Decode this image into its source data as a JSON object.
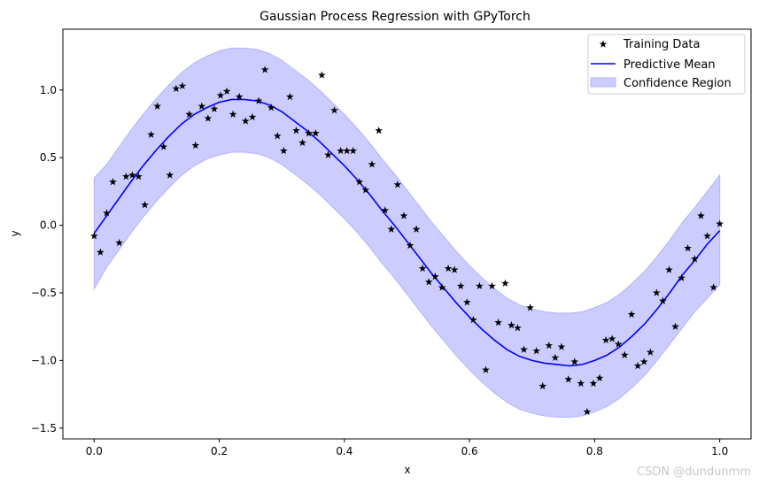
{
  "chart_data": {
    "type": "scatter",
    "title": "Gaussian Process Regression with GPyTorch",
    "xlabel": "x",
    "ylabel": "y",
    "xlim": [
      -0.05,
      1.05
    ],
    "ylim": [
      -1.58,
      1.45
    ],
    "xticks": [
      0.0,
      0.2,
      0.4,
      0.6,
      0.8,
      1.0
    ],
    "xtick_labels": [
      "0.0",
      "0.2",
      "0.4",
      "0.6",
      "0.8",
      "1.0"
    ],
    "yticks": [
      -1.5,
      -1.0,
      -0.5,
      0.0,
      0.5,
      1.0
    ],
    "ytick_labels": [
      "−1.5",
      "−1.0",
      "−0.5",
      "0.0",
      "0.5",
      "1.0"
    ],
    "grid": false,
    "legend_position": "top-right",
    "colors": {
      "training": "#000000",
      "mean": "#0000ff",
      "confidence_fill": "#ccccff",
      "confidence_edge": "#b3b3ff"
    },
    "series": [
      {
        "name": "Training Data",
        "kind": "scatter",
        "marker": "star",
        "x": [
          0.0,
          0.01,
          0.02,
          0.03,
          0.04,
          0.051,
          0.061,
          0.071,
          0.081,
          0.091,
          0.101,
          0.111,
          0.121,
          0.131,
          0.141,
          0.152,
          0.162,
          0.172,
          0.182,
          0.192,
          0.202,
          0.212,
          0.222,
          0.232,
          0.242,
          0.253,
          0.263,
          0.273,
          0.283,
          0.293,
          0.303,
          0.313,
          0.323,
          0.333,
          0.343,
          0.354,
          0.364,
          0.374,
          0.384,
          0.394,
          0.404,
          0.414,
          0.424,
          0.434,
          0.444,
          0.455,
          0.465,
          0.475,
          0.485,
          0.495,
          0.505,
          0.515,
          0.525,
          0.535,
          0.545,
          0.556,
          0.566,
          0.576,
          0.586,
          0.596,
          0.606,
          0.616,
          0.626,
          0.636,
          0.646,
          0.657,
          0.667,
          0.677,
          0.687,
          0.697,
          0.707,
          0.717,
          0.727,
          0.737,
          0.747,
          0.758,
          0.768,
          0.778,
          0.788,
          0.798,
          0.808,
          0.818,
          0.828,
          0.838,
          0.848,
          0.859,
          0.869,
          0.879,
          0.889,
          0.899,
          0.909,
          0.919,
          0.929,
          0.939,
          0.949,
          0.96,
          0.97,
          0.98,
          0.99,
          1.0
        ],
        "y": [
          -0.08,
          -0.2,
          0.09,
          0.32,
          -0.13,
          0.36,
          0.37,
          0.36,
          0.15,
          0.67,
          0.88,
          0.58,
          0.37,
          1.01,
          1.03,
          0.82,
          0.59,
          0.88,
          0.79,
          0.86,
          0.96,
          0.99,
          0.82,
          0.95,
          0.77,
          0.8,
          0.92,
          1.15,
          0.87,
          0.66,
          0.55,
          0.95,
          0.7,
          0.61,
          0.68,
          0.68,
          1.11,
          0.52,
          0.85,
          0.55,
          0.55,
          0.55,
          0.32,
          0.26,
          0.45,
          0.7,
          0.11,
          -0.03,
          0.3,
          0.07,
          -0.15,
          -0.03,
          -0.32,
          -0.42,
          -0.38,
          -0.46,
          -0.32,
          -0.33,
          -0.45,
          -0.57,
          -0.7,
          -0.45,
          -1.07,
          -0.45,
          -0.72,
          -0.43,
          -0.74,
          -0.76,
          -0.92,
          -0.61,
          -0.93,
          -1.19,
          -0.89,
          -0.98,
          -0.9,
          -1.14,
          -1.01,
          -1.17,
          -1.38,
          -1.17,
          -1.13,
          -0.85,
          -0.84,
          -0.88,
          -0.96,
          -0.66,
          -1.04,
          -1.01,
          -0.94,
          -0.5,
          -0.56,
          -0.33,
          -0.75,
          -0.39,
          -0.17,
          -0.25,
          0.07,
          -0.08,
          -0.46,
          0.01
        ]
      },
      {
        "name": "Predictive Mean",
        "kind": "line",
        "x": [
          0.0,
          0.02,
          0.04,
          0.06,
          0.08,
          0.1,
          0.12,
          0.14,
          0.16,
          0.18,
          0.2,
          0.22,
          0.24,
          0.26,
          0.28,
          0.3,
          0.32,
          0.34,
          0.36,
          0.38,
          0.4,
          0.42,
          0.44,
          0.46,
          0.48,
          0.5,
          0.52,
          0.54,
          0.56,
          0.58,
          0.6,
          0.62,
          0.64,
          0.66,
          0.68,
          0.7,
          0.72,
          0.74,
          0.76,
          0.78,
          0.8,
          0.82,
          0.84,
          0.86,
          0.88,
          0.9,
          0.92,
          0.94,
          0.96,
          0.98,
          1.0
        ],
        "y": [
          -0.06,
          0.07,
          0.2,
          0.33,
          0.45,
          0.56,
          0.66,
          0.75,
          0.82,
          0.87,
          0.91,
          0.93,
          0.93,
          0.92,
          0.89,
          0.84,
          0.77,
          0.7,
          0.62,
          0.53,
          0.44,
          0.34,
          0.23,
          0.11,
          0.0,
          -0.12,
          -0.24,
          -0.36,
          -0.47,
          -0.58,
          -0.68,
          -0.77,
          -0.85,
          -0.92,
          -0.97,
          -1.0,
          -1.02,
          -1.03,
          -1.04,
          -1.03,
          -1.0,
          -0.96,
          -0.9,
          -0.82,
          -0.73,
          -0.62,
          -0.5,
          -0.37,
          -0.26,
          -0.14,
          -0.04
        ]
      },
      {
        "name": "Confidence Region",
        "kind": "band",
        "x": [
          0.0,
          0.02,
          0.04,
          0.06,
          0.08,
          0.1,
          0.12,
          0.14,
          0.16,
          0.18,
          0.2,
          0.22,
          0.24,
          0.26,
          0.28,
          0.3,
          0.32,
          0.34,
          0.36,
          0.38,
          0.4,
          0.42,
          0.44,
          0.46,
          0.48,
          0.5,
          0.52,
          0.54,
          0.56,
          0.58,
          0.6,
          0.62,
          0.64,
          0.66,
          0.68,
          0.7,
          0.72,
          0.74,
          0.76,
          0.78,
          0.8,
          0.82,
          0.84,
          0.86,
          0.88,
          0.9,
          0.92,
          0.94,
          0.96,
          0.98,
          1.0
        ],
        "lower": [
          -0.47,
          -0.31,
          -0.18,
          -0.05,
          0.07,
          0.18,
          0.28,
          0.37,
          0.44,
          0.49,
          0.52,
          0.54,
          0.54,
          0.53,
          0.5,
          0.45,
          0.38,
          0.31,
          0.23,
          0.14,
          0.05,
          -0.05,
          -0.16,
          -0.28,
          -0.39,
          -0.51,
          -0.63,
          -0.75,
          -0.86,
          -0.97,
          -1.07,
          -1.16,
          -1.24,
          -1.31,
          -1.36,
          -1.39,
          -1.41,
          -1.42,
          -1.42,
          -1.41,
          -1.38,
          -1.34,
          -1.28,
          -1.2,
          -1.11,
          -1.0,
          -0.88,
          -0.76,
          -0.64,
          -0.54,
          -0.44
        ],
        "upper": [
          0.35,
          0.45,
          0.58,
          0.71,
          0.83,
          0.94,
          1.04,
          1.13,
          1.2,
          1.25,
          1.29,
          1.31,
          1.31,
          1.3,
          1.27,
          1.22,
          1.15,
          1.08,
          1.0,
          0.91,
          0.82,
          0.72,
          0.61,
          0.49,
          0.38,
          0.26,
          0.14,
          0.02,
          -0.09,
          -0.2,
          -0.3,
          -0.39,
          -0.47,
          -0.54,
          -0.59,
          -0.62,
          -0.64,
          -0.65,
          -0.65,
          -0.64,
          -0.61,
          -0.57,
          -0.51,
          -0.43,
          -0.34,
          -0.23,
          -0.11,
          0.02,
          0.13,
          0.25,
          0.37
        ]
      }
    ]
  },
  "watermark": "CSDN @dundunmm"
}
